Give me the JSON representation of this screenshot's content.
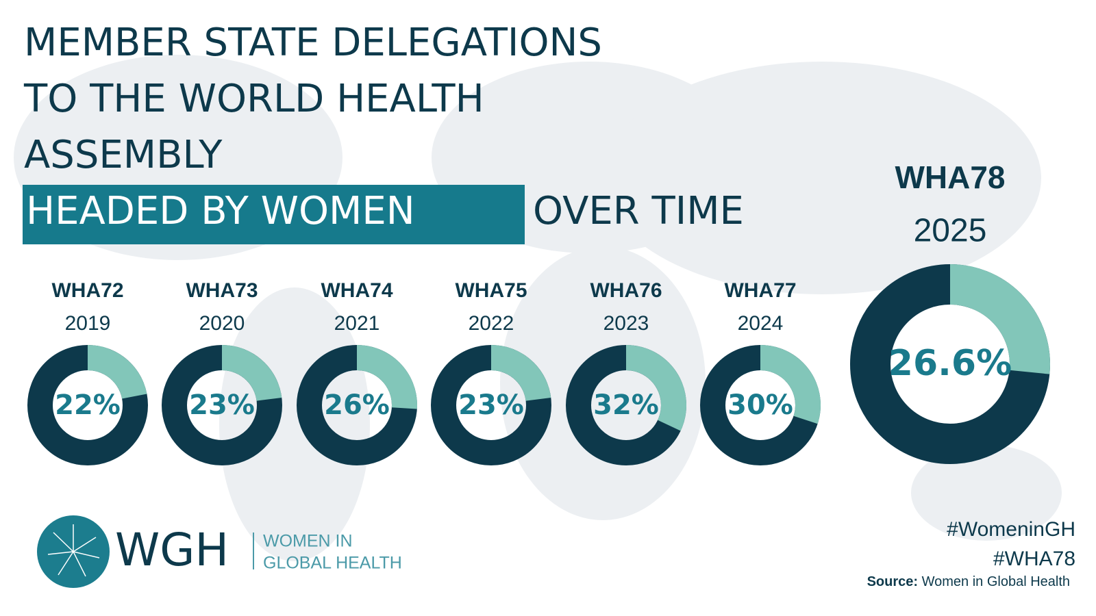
{
  "header": {
    "title_lines": [
      "MEMBER STATE DELEGATIONS",
      "TO THE WORLD HEALTH",
      "ASSEMBLY"
    ],
    "highlight": "HEADED BY WOMEN",
    "title_end": "OVER TIME"
  },
  "chart_data": [
    {
      "type": "donut",
      "title": "WHA72",
      "subtitle": "2019",
      "values": [
        22
      ],
      "value_labels": [
        "22%"
      ],
      "color": "#82c6b9",
      "track_color": "#0d394b"
    },
    {
      "type": "donut",
      "title": "WHA73",
      "subtitle": "2020",
      "values": [
        23
      ],
      "value_labels": [
        "23%"
      ],
      "color": "#82c6b9",
      "track_color": "#0d394b"
    },
    {
      "type": "donut",
      "title": "WHA74",
      "subtitle": "2021",
      "values": [
        26
      ],
      "value_labels": [
        "26%"
      ],
      "color": "#82c6b9",
      "track_color": "#0d394b"
    },
    {
      "type": "donut",
      "title": "WHA75",
      "subtitle": "2022",
      "values": [
        23
      ],
      "value_labels": [
        "23%"
      ],
      "color": "#82c6b9",
      "track_color": "#0d394b"
    },
    {
      "type": "donut",
      "title": "WHA76",
      "subtitle": "2023",
      "values": [
        32
      ],
      "value_labels": [
        "32%"
      ],
      "color": "#82c6b9",
      "track_color": "#0d394b"
    },
    {
      "type": "donut",
      "title": "WHA77",
      "subtitle": "2024",
      "values": [
        30
      ],
      "value_labels": [
        "30%"
      ],
      "color": "#82c6b9",
      "track_color": "#0d394b"
    },
    {
      "type": "donut",
      "title": "WHA78",
      "subtitle": "2025",
      "values": [
        26.6
      ],
      "value_labels": [
        "26.6%"
      ],
      "color": "#82c6b9",
      "track_color": "#0d394b"
    }
  ],
  "logo": {
    "acronym": "WGH",
    "name_lines": [
      "WOMEN IN",
      "GLOBAL HEALTH"
    ]
  },
  "footer": {
    "hashtags": [
      "#WomeninGH",
      "#WHA78"
    ],
    "source_label": "Source:",
    "source": "Women in Global Health"
  }
}
